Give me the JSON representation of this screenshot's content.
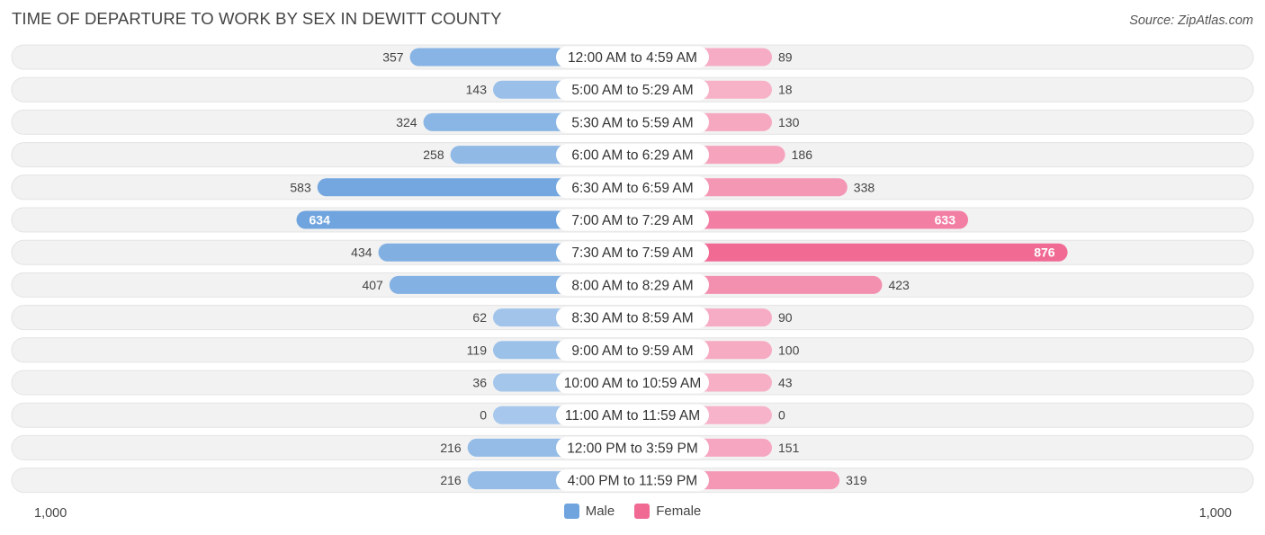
{
  "title": "TIME OF DEPARTURE TO WORK BY SEX IN DEWITT COUNTY",
  "source": "Source: ZipAtlas.com",
  "colors": {
    "male": "#6fa4de",
    "male_light": "#a7c8ec",
    "female": "#f06a94",
    "female_light": "#f7b3c9",
    "row_bg": "#f2f2f2"
  },
  "chart_data": {
    "type": "bar",
    "orientation": "horizontal-diverging",
    "title": "TIME OF DEPARTURE TO WORK BY SEX IN DEWITT COUNTY",
    "categories": [
      "12:00 AM to 4:59 AM",
      "5:00 AM to 5:29 AM",
      "5:30 AM to 5:59 AM",
      "6:00 AM to 6:29 AM",
      "6:30 AM to 6:59 AM",
      "7:00 AM to 7:29 AM",
      "7:30 AM to 7:59 AM",
      "8:00 AM to 8:29 AM",
      "8:30 AM to 8:59 AM",
      "9:00 AM to 9:59 AM",
      "10:00 AM to 10:59 AM",
      "11:00 AM to 11:59 AM",
      "12:00 PM to 3:59 PM",
      "4:00 PM to 11:59 PM"
    ],
    "series": [
      {
        "name": "Male",
        "values": [
          357,
          143,
          324,
          258,
          583,
          634,
          434,
          407,
          62,
          119,
          36,
          0,
          216,
          216
        ]
      },
      {
        "name": "Female",
        "values": [
          89,
          18,
          130,
          186,
          338,
          633,
          876,
          423,
          90,
          100,
          43,
          0,
          151,
          319
        ]
      }
    ],
    "axis_min_label": "1,000",
    "axis_max_label": "1,000",
    "xlim": [
      -1000,
      1000
    ],
    "legend": "bottom-center"
  }
}
